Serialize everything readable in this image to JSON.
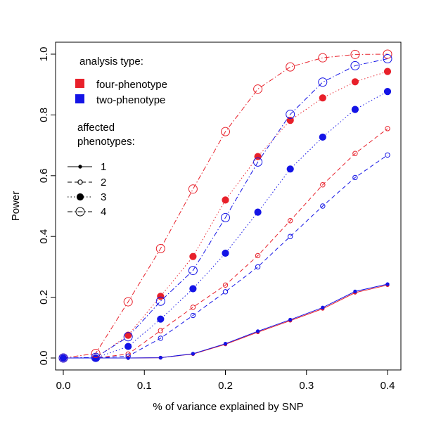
{
  "chart_data": {
    "type": "line",
    "xlabel": "% of variance explained by SNP",
    "ylabel": "Power",
    "xlim": [
      0.0,
      0.4
    ],
    "ylim": [
      0.0,
      1.0
    ],
    "xticks": [
      0.0,
      0.1,
      0.2,
      0.3,
      0.4
    ],
    "xtick_labels": [
      "0.0",
      "0.1",
      "0.2",
      "0.3",
      "0.4"
    ],
    "yticks": [
      0.0,
      0.2,
      0.4,
      0.6,
      0.8,
      1.0
    ],
    "ytick_labels": [
      "0.0",
      "0.2",
      "0.4",
      "0.6",
      "0.8",
      "1.0"
    ],
    "x": [
      0.0,
      0.04,
      0.08,
      0.12,
      0.16,
      0.2,
      0.24,
      0.28,
      0.32,
      0.36,
      0.4
    ],
    "colors": {
      "four-phenotype": "#e8202a",
      "two-phenotype": "#1414e6"
    },
    "series": [
      {
        "name": "four-phenotype, 1 affected",
        "analysis": "four-phenotype",
        "affected": 1,
        "values": [
          0.0,
          0.0,
          0.0,
          0.001,
          0.013,
          0.045,
          0.085,
          0.123,
          0.162,
          0.215,
          0.24
        ]
      },
      {
        "name": "two-phenotype, 1 affected",
        "analysis": "two-phenotype",
        "affected": 1,
        "values": [
          0.0,
          0.0,
          0.0,
          0.001,
          0.014,
          0.047,
          0.088,
          0.126,
          0.166,
          0.219,
          0.243
        ]
      },
      {
        "name": "four-phenotype, 2 affected",
        "analysis": "four-phenotype",
        "affected": 2,
        "values": [
          0.0,
          0.0,
          0.013,
          0.09,
          0.167,
          0.24,
          0.337,
          0.452,
          0.57,
          0.673,
          0.755
        ]
      },
      {
        "name": "two-phenotype, 2 affected",
        "analysis": "two-phenotype",
        "affected": 2,
        "values": [
          0.0,
          0.0,
          0.006,
          0.065,
          0.14,
          0.218,
          0.3,
          0.4,
          0.5,
          0.594,
          0.668
        ]
      },
      {
        "name": "four-phenotype, 3 affected",
        "analysis": "four-phenotype",
        "affected": 3,
        "values": [
          0.0,
          0.0,
          0.075,
          0.203,
          0.334,
          0.52,
          0.663,
          0.782,
          0.856,
          0.909,
          0.943
        ]
      },
      {
        "name": "two-phenotype, 3 affected",
        "analysis": "two-phenotype",
        "affected": 3,
        "values": [
          0.0,
          0.0,
          0.038,
          0.128,
          0.228,
          0.345,
          0.48,
          0.622,
          0.727,
          0.818,
          0.877
        ]
      },
      {
        "name": "four-phenotype, 4 affected",
        "analysis": "four-phenotype",
        "affected": 4,
        "values": [
          0.0,
          0.015,
          0.185,
          0.36,
          0.556,
          0.745,
          0.885,
          0.958,
          0.988,
          0.999,
          1.0
        ]
      },
      {
        "name": "two-phenotype, 4 affected",
        "analysis": "two-phenotype",
        "affected": 4,
        "values": [
          0.0,
          0.002,
          0.07,
          0.187,
          0.288,
          0.462,
          0.645,
          0.802,
          0.908,
          0.962,
          0.985
        ]
      }
    ],
    "legend": {
      "placement": "top-left",
      "analysis_title": "analysis type:",
      "analysis_items": [
        {
          "label": "four-phenotype",
          "key": "four-phenotype"
        },
        {
          "label": "two-phenotype",
          "key": "two-phenotype"
        }
      ],
      "affected_title_line1": "affected",
      "affected_title_line2": "phenotypes:",
      "affected_items": [
        "1",
        "2",
        "3",
        "4"
      ]
    }
  }
}
